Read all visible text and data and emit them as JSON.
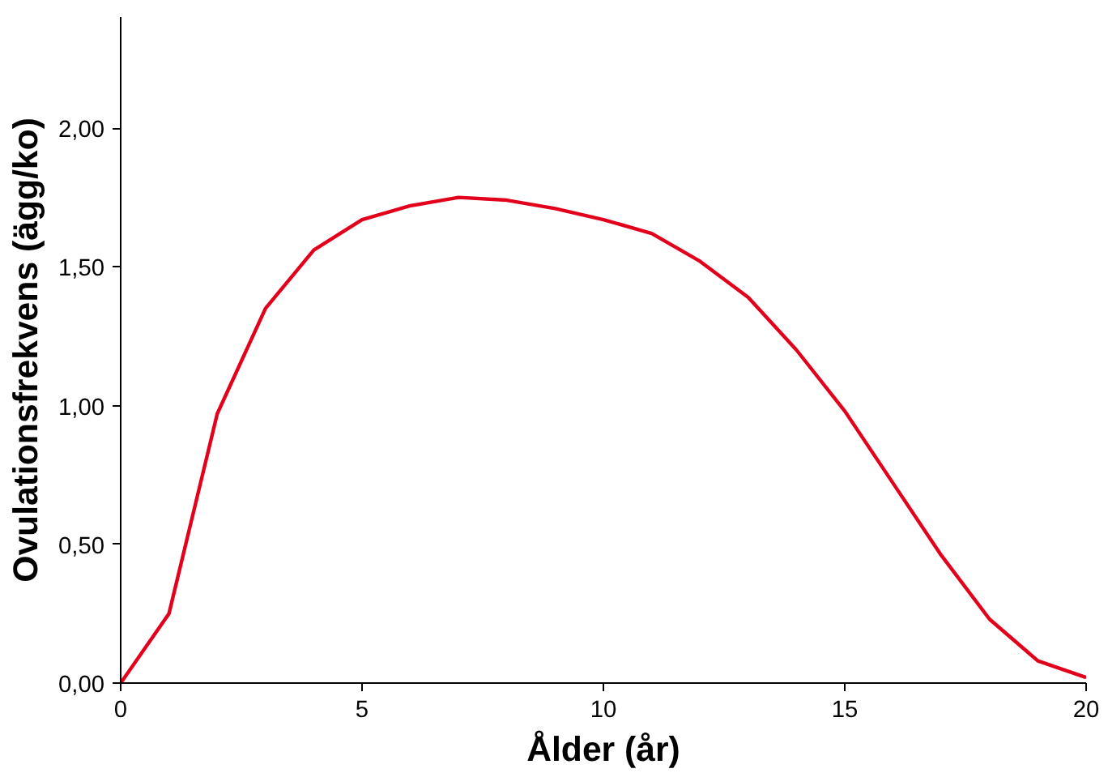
{
  "chart_data": {
    "type": "line",
    "xlabel": "Ålder (år)",
    "ylabel": "Ovulationsfrekvens (ägg/ko)",
    "x": [
      0,
      1,
      2,
      3,
      4,
      5,
      6,
      7,
      8,
      9,
      10,
      11,
      12,
      13,
      14,
      15,
      16,
      17,
      18,
      19,
      20
    ],
    "series": [
      {
        "color": "#e2001a",
        "values": [
          0,
          0.25,
          0.97,
          1.35,
          1.56,
          1.67,
          1.72,
          1.75,
          1.74,
          1.71,
          1.67,
          1.62,
          1.52,
          1.39,
          1.2,
          0.98,
          0.72,
          0.46,
          0.23,
          0.08,
          0.02
        ]
      }
    ],
    "xlim": [
      0,
      20
    ],
    "xticks": [
      0,
      5,
      10,
      15,
      20
    ],
    "ylim": [
      0,
      2.4
    ],
    "yticks": [
      {
        "value": 0,
        "label": "0,00"
      },
      {
        "value": 0.5,
        "label": "0,50"
      },
      {
        "value": 1,
        "label": "1,00"
      },
      {
        "value": 1.5,
        "label": "1,50"
      },
      {
        "value": 2,
        "label": "2,00"
      }
    ],
    "grid": false,
    "marker": "none",
    "line_style": "solid"
  }
}
